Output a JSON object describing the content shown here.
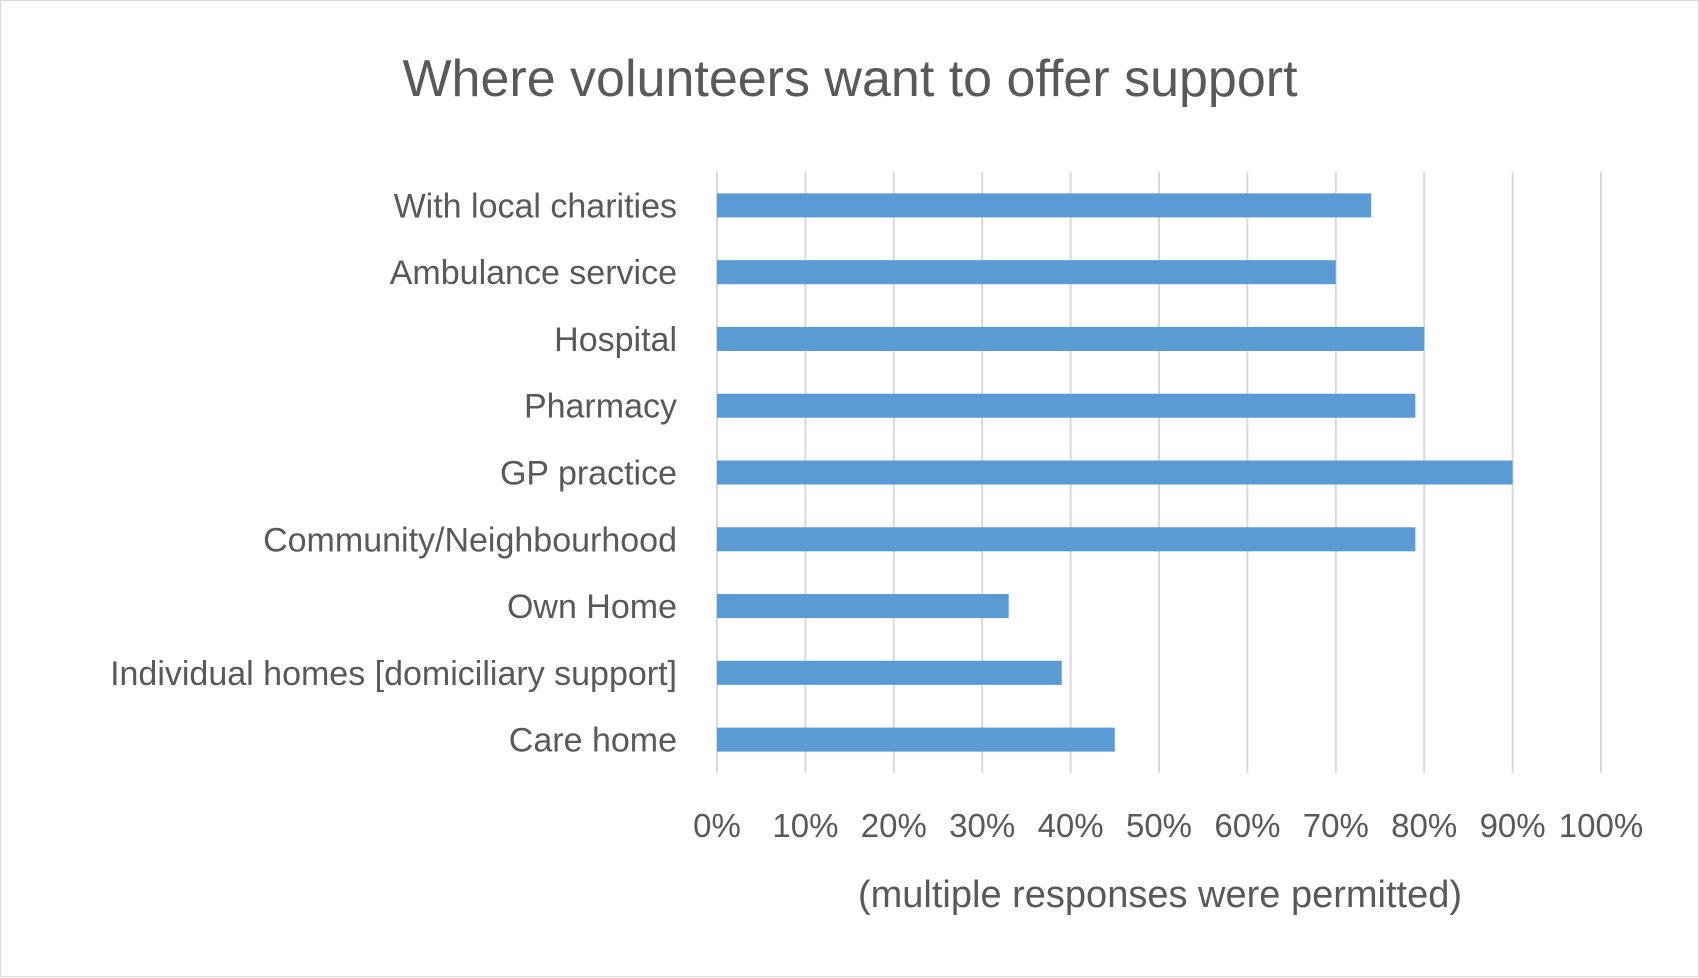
{
  "chart_data": {
    "type": "bar",
    "orientation": "horizontal",
    "title": "Where volunteers want to offer support",
    "xlabel": "(multiple responses were permitted)",
    "ylabel": "",
    "categories": [
      "With local charities",
      "Ambulance service",
      "Hospital",
      "Pharmacy",
      "GP practice",
      "Community/Neighbourhood",
      "Own Home",
      "Individual homes [domiciliary support]",
      "Care home"
    ],
    "values": [
      74,
      70,
      80,
      79,
      90,
      79,
      33,
      39,
      45
    ],
    "xlim": [
      0,
      100
    ],
    "x_ticks": [
      "0%",
      "10%",
      "20%",
      "30%",
      "40%",
      "50%",
      "60%",
      "70%",
      "80%",
      "90%",
      "100%"
    ],
    "grid": "vertical",
    "legend": "none",
    "bar_color": "#5b9bd5"
  }
}
